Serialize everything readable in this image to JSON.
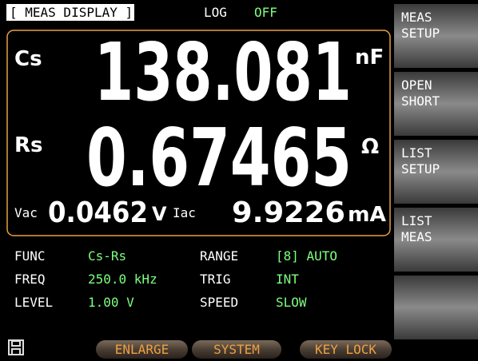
{
  "header": {
    "title": "[ MEAS DISPLAY ]",
    "log_label": "LOG",
    "log_value": "OFF"
  },
  "primary": [
    {
      "param": "Cs",
      "value": "138.081",
      "unit": "nF"
    },
    {
      "param": "Rs",
      "value": "0.67465",
      "unit": "Ω"
    }
  ],
  "secondary": {
    "vac_label": "Vac",
    "vac_value": "0.0462",
    "vac_unit": "V",
    "iac_label": "Iac",
    "iac_value": "9.9226",
    "iac_unit": "mA"
  },
  "settings": [
    [
      "FUNC",
      "Cs-Rs",
      "RANGE",
      "[8] AUTO"
    ],
    [
      "FREQ",
      "250.0 kHz",
      "TRIG",
      "INT"
    ],
    [
      "LEVEL",
      "1.00  V",
      "SPEED",
      "SLOW"
    ]
  ],
  "softkeys": [
    [
      "MEAS",
      "SETUP"
    ],
    [
      "OPEN",
      "SHORT"
    ],
    [
      "LIST",
      "SETUP"
    ],
    [
      "LIST",
      "MEAS"
    ]
  ],
  "bottom_buttons": [
    "ENLARGE",
    "SYSTEM",
    "KEY LOCK"
  ]
}
